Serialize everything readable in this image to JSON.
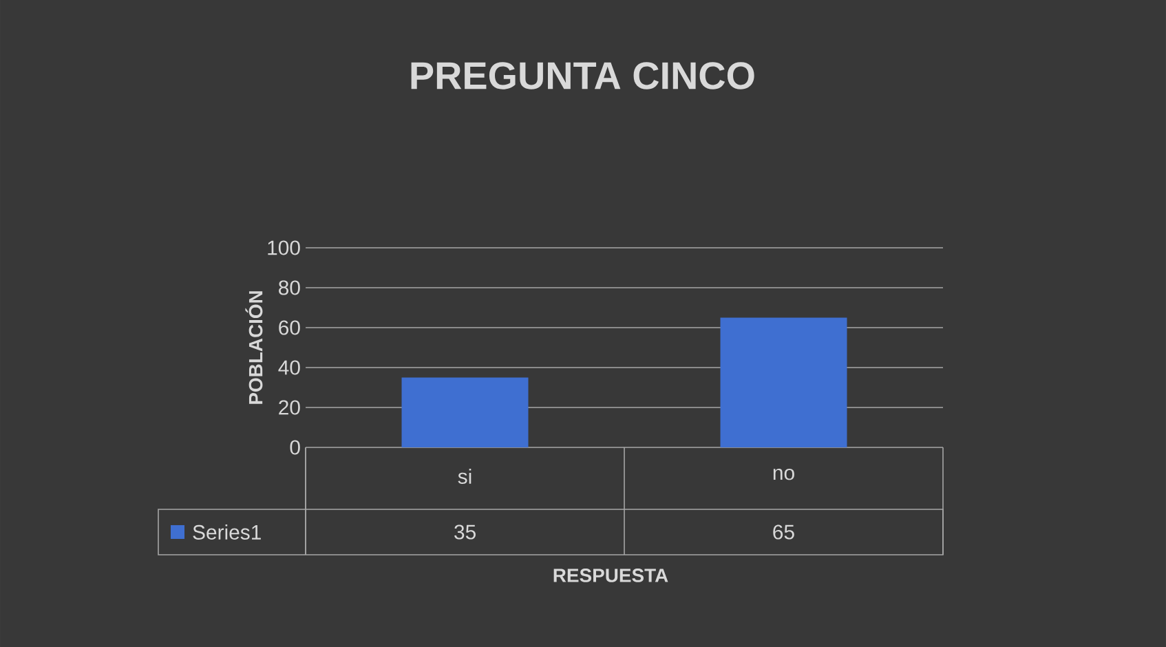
{
  "chart_data": {
    "type": "bar",
    "title": "PREGUNTA CINCO",
    "xlabel": "RESPUESTA",
    "ylabel": "POBLACIÓN",
    "categories": [
      "si",
      "no"
    ],
    "series": [
      {
        "name": "Series1",
        "color": "#3f6fd1",
        "values": [
          35,
          65
        ]
      }
    ],
    "ylim": [
      0,
      100
    ],
    "yticks": [
      0,
      20,
      40,
      60,
      80,
      100
    ],
    "grid": "y",
    "data_labels": true
  }
}
